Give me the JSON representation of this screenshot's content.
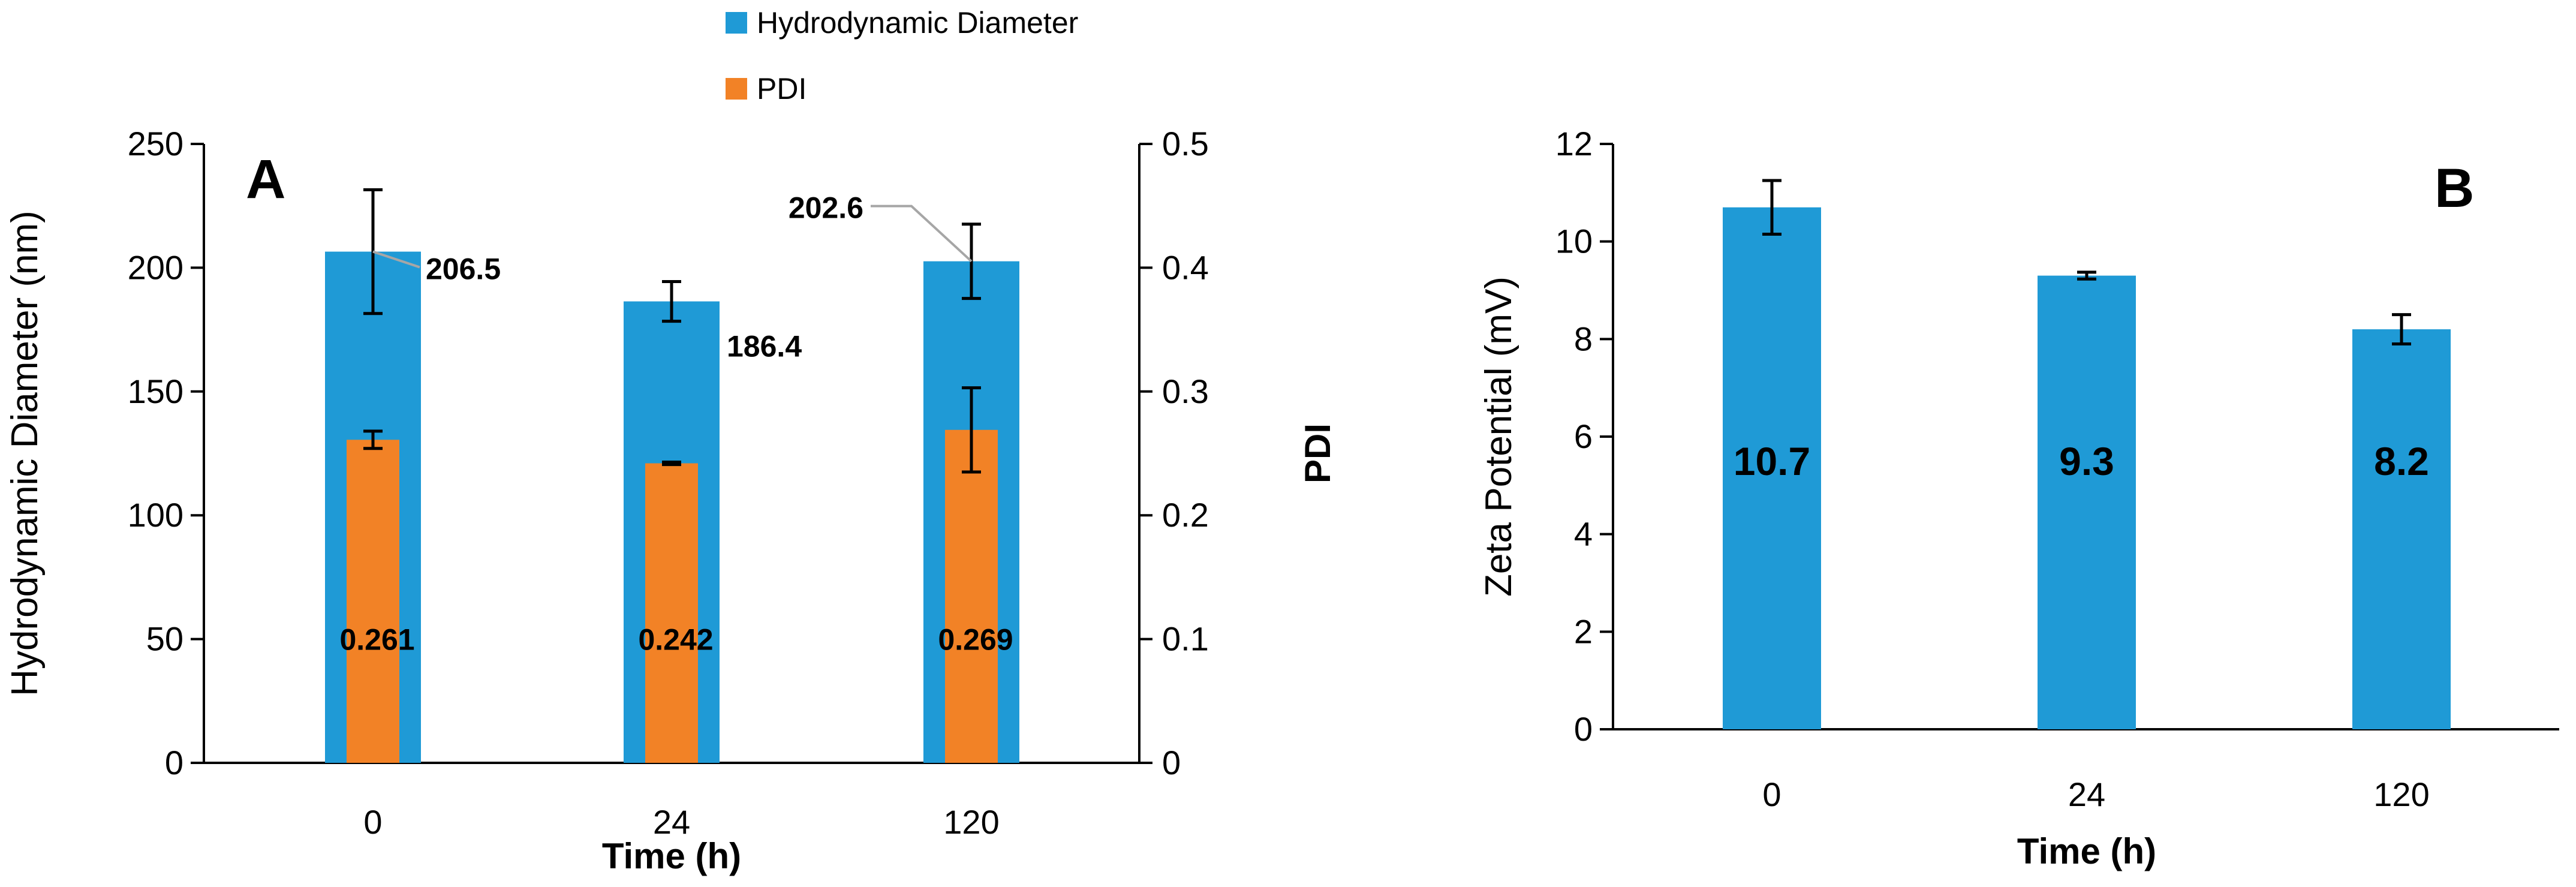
{
  "colors": {
    "diameter": "#1f9ad6",
    "pdi": "#f28226",
    "axis": "#000000",
    "leader": "#a6a6a6"
  },
  "chart_data": [
    {
      "type": "bar",
      "panel_label": "A",
      "categories": [
        "0",
        "24",
        "120"
      ],
      "xlabel": "Time (h)",
      "ylabel": "Hydrodynamic Diameter (nm)",
      "y2label": "PDI",
      "ylim": [
        0,
        250
      ],
      "y2lim": [
        0,
        0.5
      ],
      "yticks": [
        "0",
        "50",
        "100",
        "150",
        "200",
        "250"
      ],
      "y2ticks": [
        "0",
        "0.1",
        "0.2",
        "0.3",
        "0.4",
        "0.5"
      ],
      "legend_position": "top-center",
      "grid": false,
      "series": [
        {
          "name": "Hydrodynamic Diameter",
          "axis": "left",
          "values": [
            206.5,
            186.4,
            202.6
          ],
          "errors": [
            25,
            8,
            15
          ],
          "labels": [
            "206.5",
            "186.4",
            "202.6"
          ]
        },
        {
          "name": "PDI",
          "axis": "right",
          "values": [
            0.261,
            0.242,
            0.269
          ],
          "errors": [
            0.007,
            0.001,
            0.034
          ],
          "labels": [
            "0.261",
            "0.242",
            "0.269"
          ]
        }
      ]
    },
    {
      "type": "bar",
      "panel_label": "B",
      "categories": [
        "0",
        "24",
        "120"
      ],
      "xlabel": "Time (h)",
      "ylabel": "Zeta Potential (mV)",
      "ylim": [
        0,
        12
      ],
      "yticks": [
        "0",
        "2",
        "4",
        "6",
        "8",
        "10",
        "12"
      ],
      "grid": false,
      "series": [
        {
          "values": [
            10.7,
            9.3,
            8.2
          ],
          "errors": [
            0.55,
            0.07,
            0.3
          ],
          "labels": [
            "10.7",
            "9.3",
            "8.2"
          ]
        }
      ]
    }
  ]
}
